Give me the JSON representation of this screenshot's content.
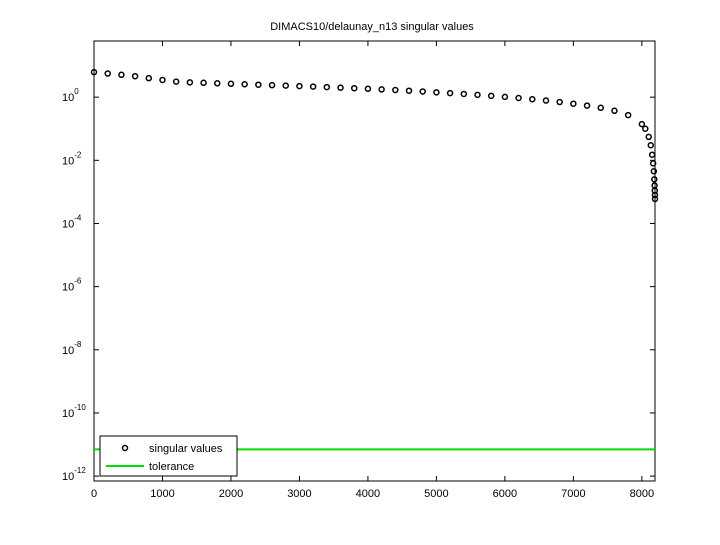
{
  "chart_data": {
    "type": "scatter",
    "title": "DIMACS10/delaunay_n13 singular values",
    "log_y": true,
    "grid": false,
    "legend": "lower left",
    "xlim": [
      0,
      8192
    ],
    "xticks": [
      0,
      1000,
      2000,
      3000,
      4000,
      5000,
      6000,
      7000,
      8000
    ],
    "ylim": [
      7e-13,
      60
    ],
    "yticks": [
      {
        "value": 1,
        "label": "10",
        "exponent": "0"
      },
      {
        "value": 0.01,
        "label": "10",
        "exponent": "-2"
      },
      {
        "value": 0.0001,
        "label": "10",
        "exponent": "-4"
      },
      {
        "value": 1e-06,
        "label": "10",
        "exponent": "-6"
      },
      {
        "value": 1e-08,
        "label": "10",
        "exponent": "-8"
      },
      {
        "value": 1e-10,
        "label": "10",
        "exponent": "-10"
      },
      {
        "value": 1e-12,
        "label": "10",
        "exponent": "-12"
      }
    ],
    "series": [
      {
        "name": "singular values",
        "color": "#000000",
        "marker": "circle",
        "x": [
          0,
          200,
          400,
          600,
          800,
          1000,
          1200,
          1400,
          1600,
          1800,
          2000,
          2200,
          2400,
          2600,
          2800,
          3000,
          3200,
          3400,
          3600,
          3800,
          4000,
          4200,
          4400,
          4600,
          4800,
          5000,
          5200,
          5400,
          5600,
          5800,
          6000,
          6200,
          6400,
          6600,
          6800,
          7000,
          7200,
          7400,
          7600,
          7800,
          8000,
          8050,
          8100,
          8130,
          8150,
          8165,
          8175,
          8182,
          8186,
          8189,
          8191,
          8192
        ],
        "values": [
          6.2,
          5.6,
          5.1,
          4.6,
          4.0,
          3.5,
          3.1,
          2.95,
          2.85,
          2.75,
          2.65,
          2.56,
          2.48,
          2.4,
          2.32,
          2.24,
          2.16,
          2.08,
          2.0,
          1.92,
          1.84,
          1.76,
          1.68,
          1.6,
          1.51,
          1.42,
          1.34,
          1.26,
          1.18,
          1.1,
          1.02,
          0.94,
          0.86,
          0.78,
          0.7,
          0.62,
          0.54,
          0.46,
          0.37,
          0.27,
          0.14,
          0.1,
          0.055,
          0.03,
          0.015,
          0.008,
          0.0045,
          0.0025,
          0.0016,
          0.0011,
          0.0008,
          0.0006
        ]
      },
      {
        "name": "tolerance",
        "color": "#00dd00",
        "marker": "line",
        "x": [
          0,
          8192
        ],
        "values": [
          7e-12,
          7e-12
        ]
      }
    ]
  }
}
